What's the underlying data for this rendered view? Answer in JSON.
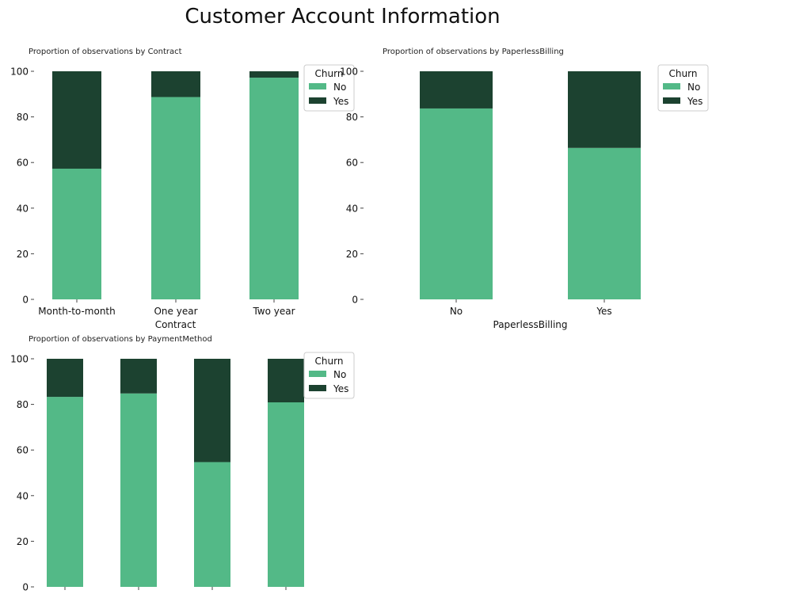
{
  "figure": {
    "title": "Customer Account Information"
  },
  "colors": {
    "no": "#53b987",
    "yes": "#1c4230"
  },
  "legend": {
    "title": "Churn",
    "labels": [
      "No",
      "Yes"
    ]
  },
  "chart_data": [
    {
      "type": "bar",
      "stacked": true,
      "title": "Proportion of observations by Contract",
      "xlabel": "Contract",
      "ylabel": "",
      "ylim": [
        0,
        100
      ],
      "yticks": [
        "0",
        "20",
        "40",
        "60",
        "80",
        "100"
      ],
      "categories": [
        "Month-to-month",
        "One year",
        "Two year"
      ],
      "series": [
        {
          "name": "No",
          "values": [
            57.3,
            88.7,
            97.2
          ]
        },
        {
          "name": "Yes",
          "values": [
            42.7,
            11.3,
            2.8
          ]
        }
      ],
      "legend_position": "top-right"
    },
    {
      "type": "bar",
      "stacked": true,
      "title": "Proportion of observations by PaperlessBilling",
      "xlabel": "PaperlessBilling",
      "ylabel": "",
      "ylim": [
        0,
        100
      ],
      "yticks": [
        "0",
        "20",
        "40",
        "60",
        "80",
        "100"
      ],
      "categories": [
        "No",
        "Yes"
      ],
      "series": [
        {
          "name": "No",
          "values": [
            83.7,
            66.4
          ]
        },
        {
          "name": "Yes",
          "values": [
            16.3,
            33.6
          ]
        }
      ],
      "legend_position": "upper-right outside"
    },
    {
      "type": "bar",
      "stacked": true,
      "title": "Proportion of observations by PaymentMethod",
      "xlabel": "",
      "ylabel": "",
      "ylim": [
        0,
        100
      ],
      "yticks": [
        "0",
        "20",
        "40",
        "60",
        "80",
        "100"
      ],
      "categories": [
        "",
        "",
        "",
        ""
      ],
      "series": [
        {
          "name": "No",
          "values": [
            83.3,
            84.8,
            54.7,
            80.9
          ]
        },
        {
          "name": "Yes",
          "values": [
            16.7,
            15.2,
            45.3,
            19.1
          ]
        }
      ],
      "legend_position": "top-right"
    }
  ]
}
